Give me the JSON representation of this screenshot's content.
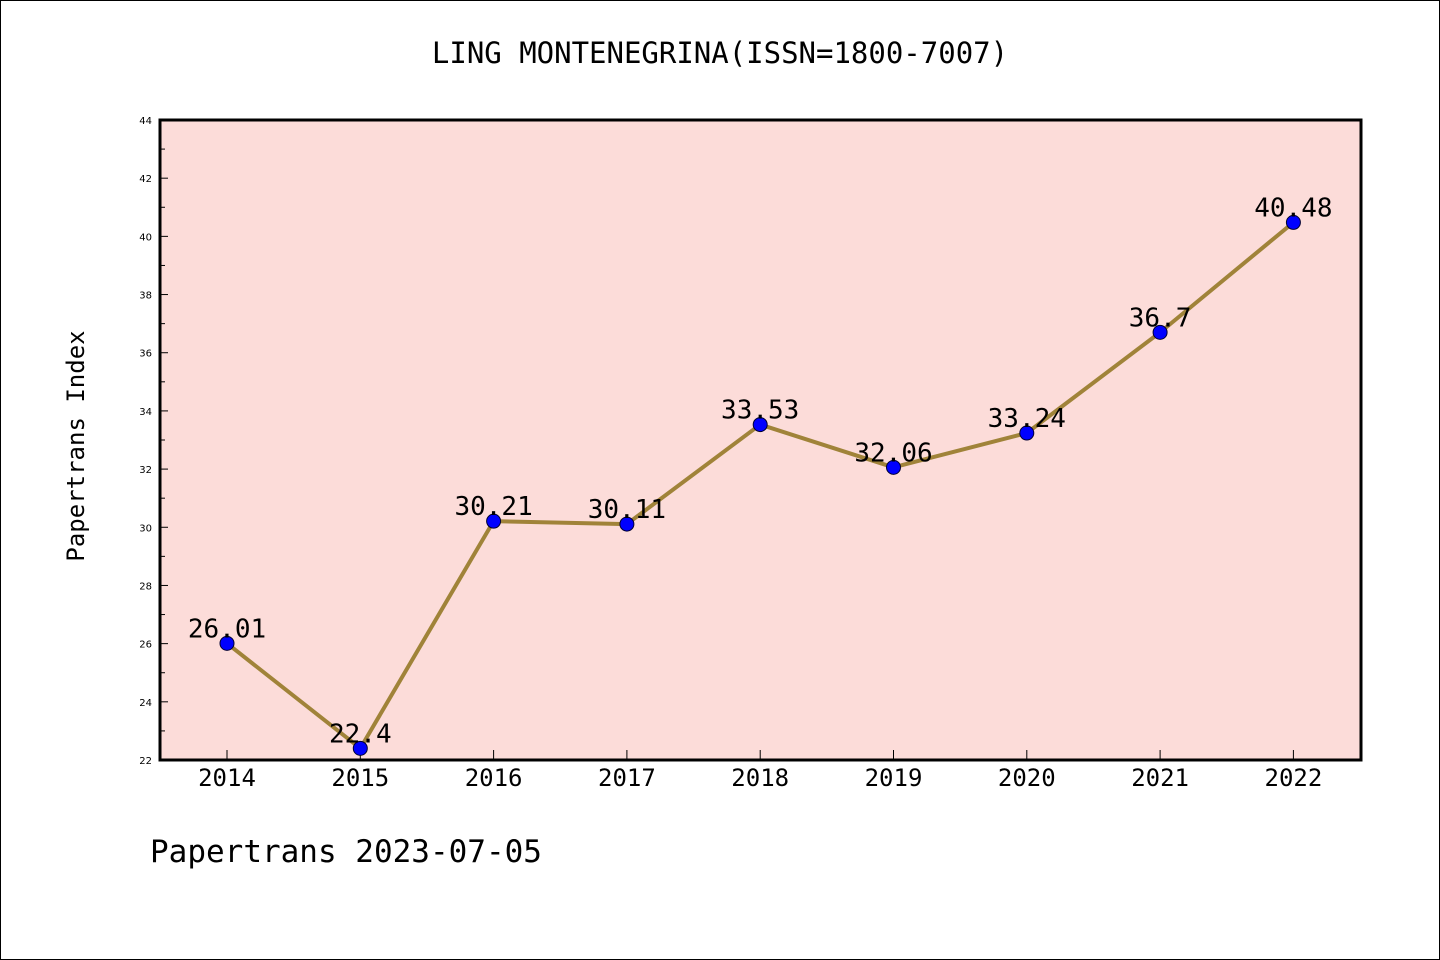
{
  "chart_data": {
    "type": "line",
    "title": "LING MONTENEGRINA(ISSN=1800-7007)",
    "xlabel": "",
    "ylabel": "Papertrans Index",
    "categories": [
      "2014",
      "2015",
      "2016",
      "2017",
      "2018",
      "2019",
      "2020",
      "2021",
      "2022"
    ],
    "series": [
      {
        "values": [
          26.01,
          22.4,
          30.21,
          30.11,
          33.53,
          32.06,
          33.24,
          36.7,
          40.48
        ],
        "data_labels": [
          "26.01",
          "22.4",
          "30.21",
          "30.11",
          "33.53",
          "32.06",
          "33.24",
          "36.7",
          "40.48"
        ]
      }
    ],
    "ylim": [
      22,
      44
    ],
    "yticks": [
      "22",
      "24",
      "26",
      "28",
      "30",
      "32",
      "34",
      "36",
      "38",
      "40",
      "42",
      "44"
    ],
    "grid": false,
    "colors": {
      "plot_background": "#fcdcd9",
      "line": "#a08339",
      "marker": "#0000ff",
      "axis": "#000000"
    }
  },
  "footer": "Papertrans 2023-07-05"
}
